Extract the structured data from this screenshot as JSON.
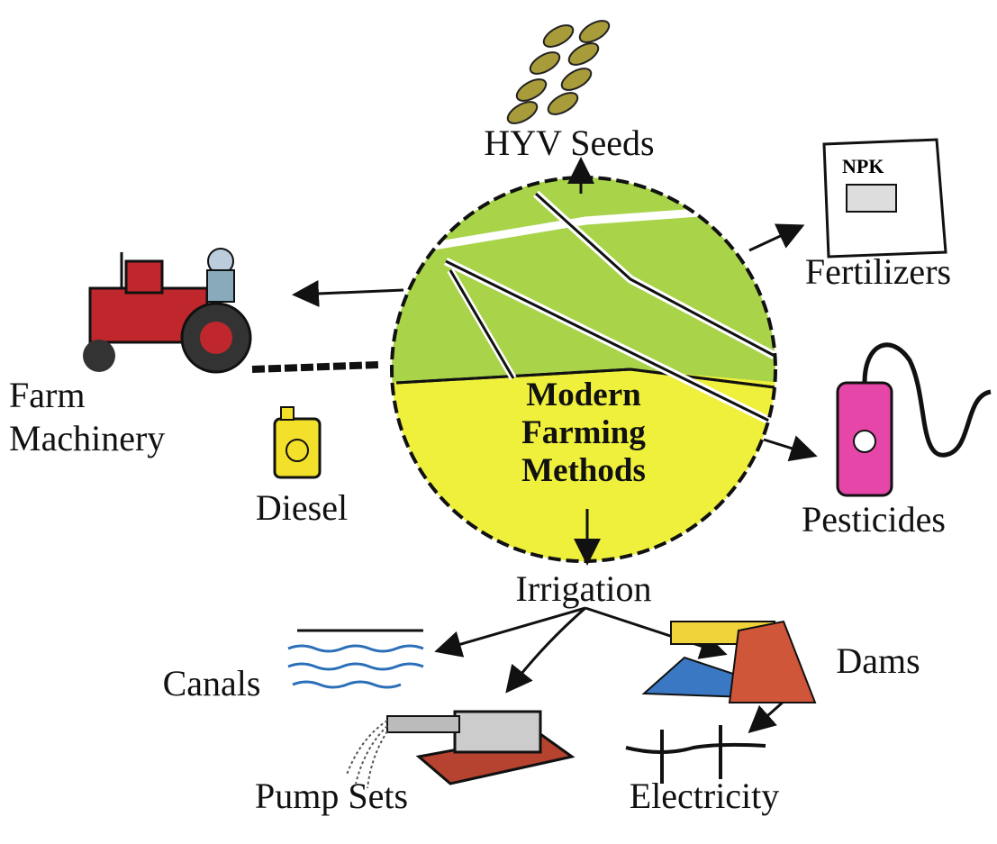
{
  "center": {
    "lines": [
      "Modern",
      "Farming",
      "Methods"
    ]
  },
  "nodes": [
    {
      "label": "HYV Seeds"
    },
    {
      "label": "Fertilizers",
      "bag_text": "NPK"
    },
    {
      "label_lines": [
        "Farm",
        "Machinery"
      ]
    },
    {
      "label": "Diesel"
    },
    {
      "label": "Pesticides"
    },
    {
      "label": "Irrigation"
    },
    {
      "label": "Canals"
    },
    {
      "label": "Dams"
    },
    {
      "label": "Pump Sets"
    },
    {
      "label": "Electricity"
    }
  ]
}
